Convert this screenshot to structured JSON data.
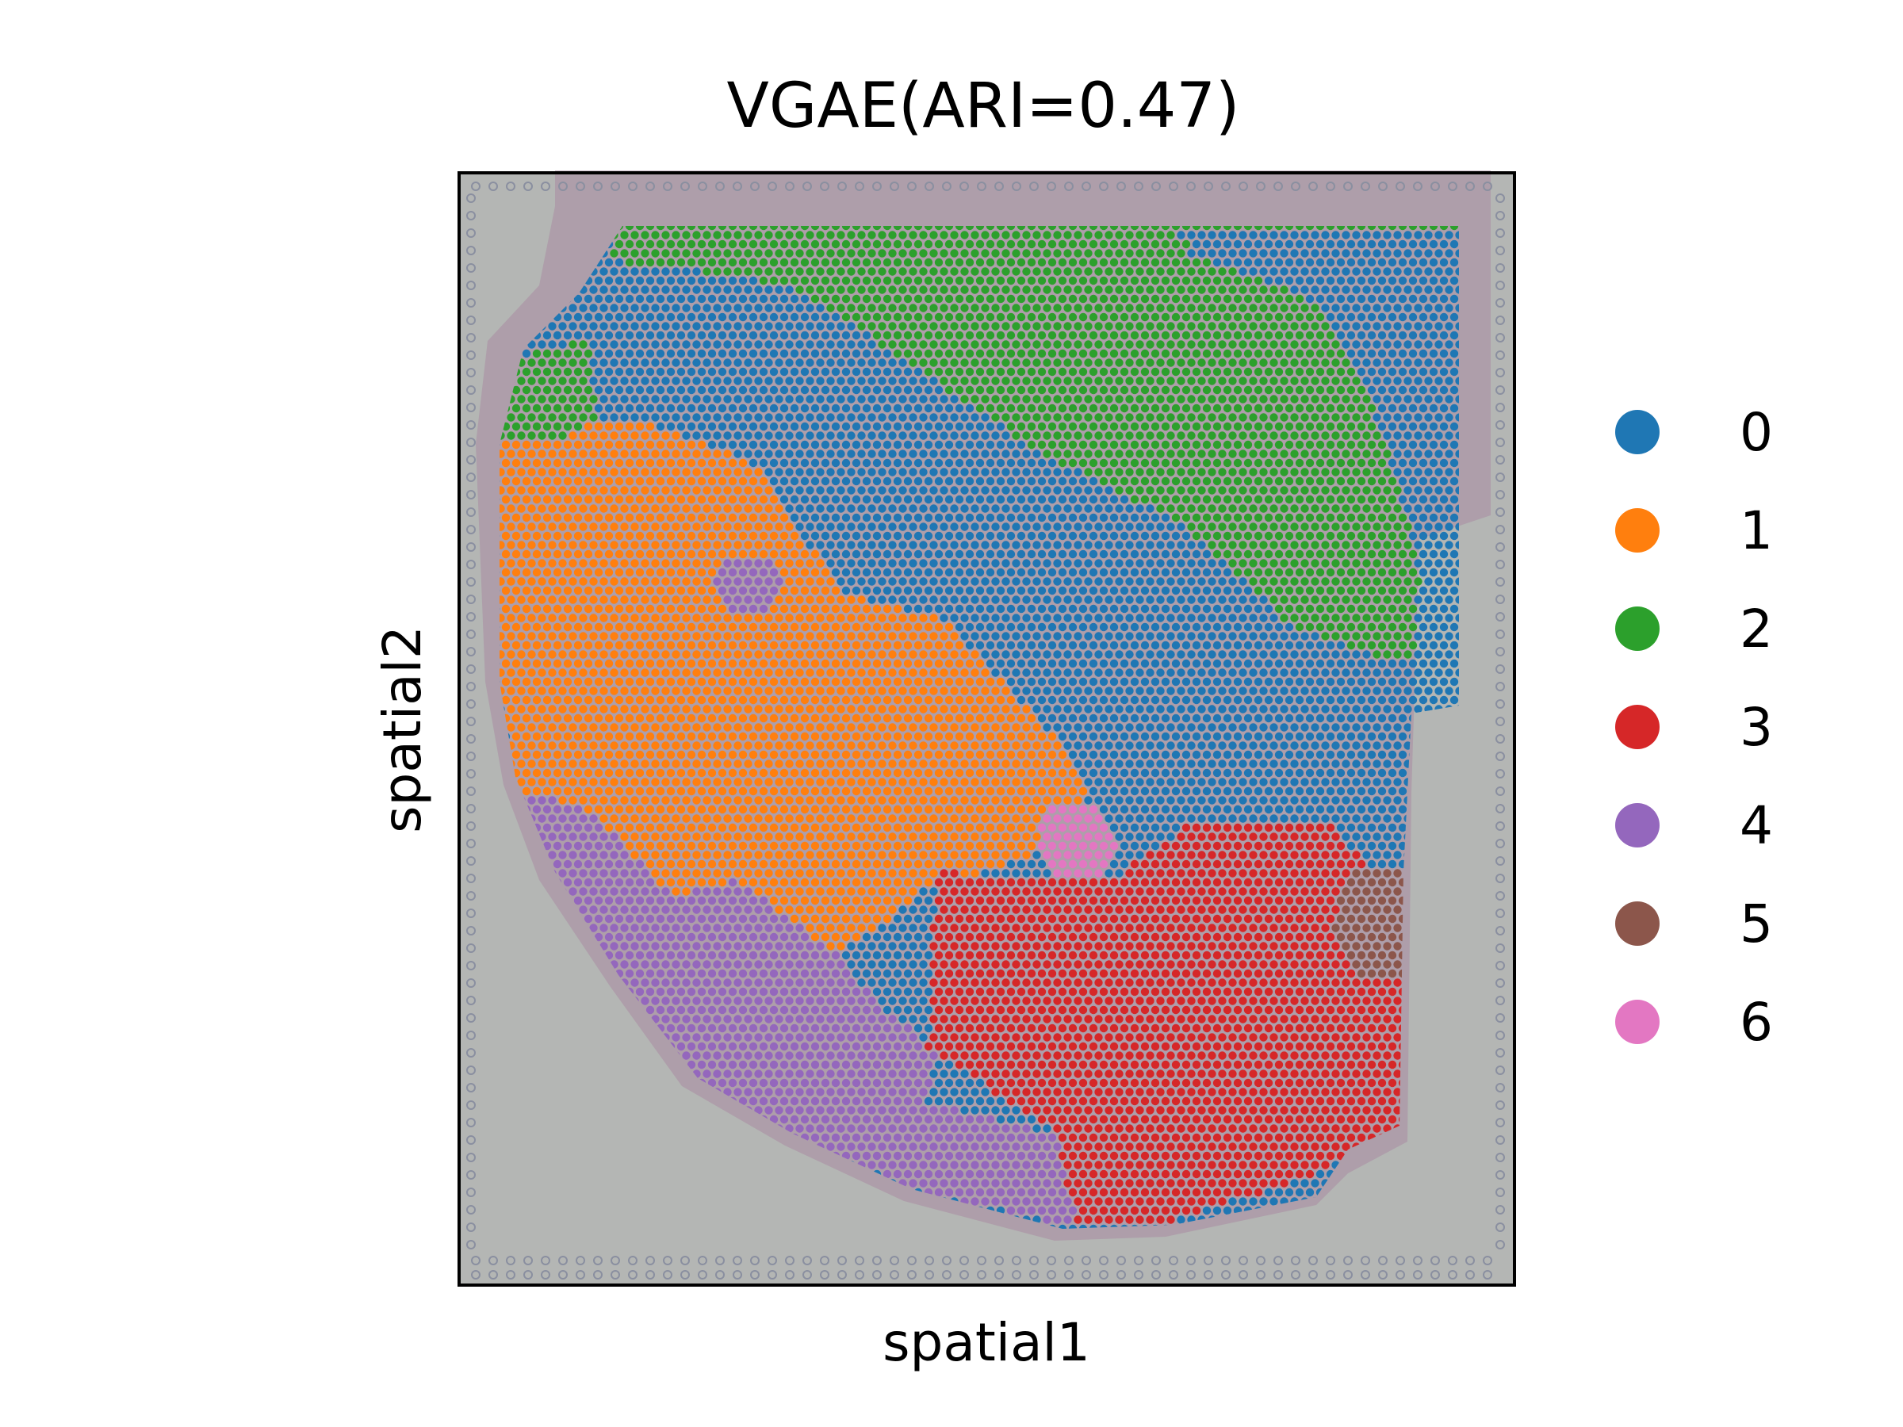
{
  "chart_data": {
    "type": "scatter",
    "title": "VGAE(ARI=0.47)",
    "xlabel": "spatial1",
    "ylabel": "spatial2",
    "xticks": [],
    "yticks": [],
    "background": "tissue histology image",
    "legend": {
      "placement": "right",
      "entries": [
        {
          "label": "0",
          "color": "#1f77b4"
        },
        {
          "label": "1",
          "color": "#ff7f0e"
        },
        {
          "label": "2",
          "color": "#2ca02c"
        },
        {
          "label": "3",
          "color": "#d62728"
        },
        {
          "label": "4",
          "color": "#9467bd"
        },
        {
          "label": "5",
          "color": "#8c564b"
        },
        {
          "label": "6",
          "color": "#e377c2"
        }
      ]
    }
  }
}
